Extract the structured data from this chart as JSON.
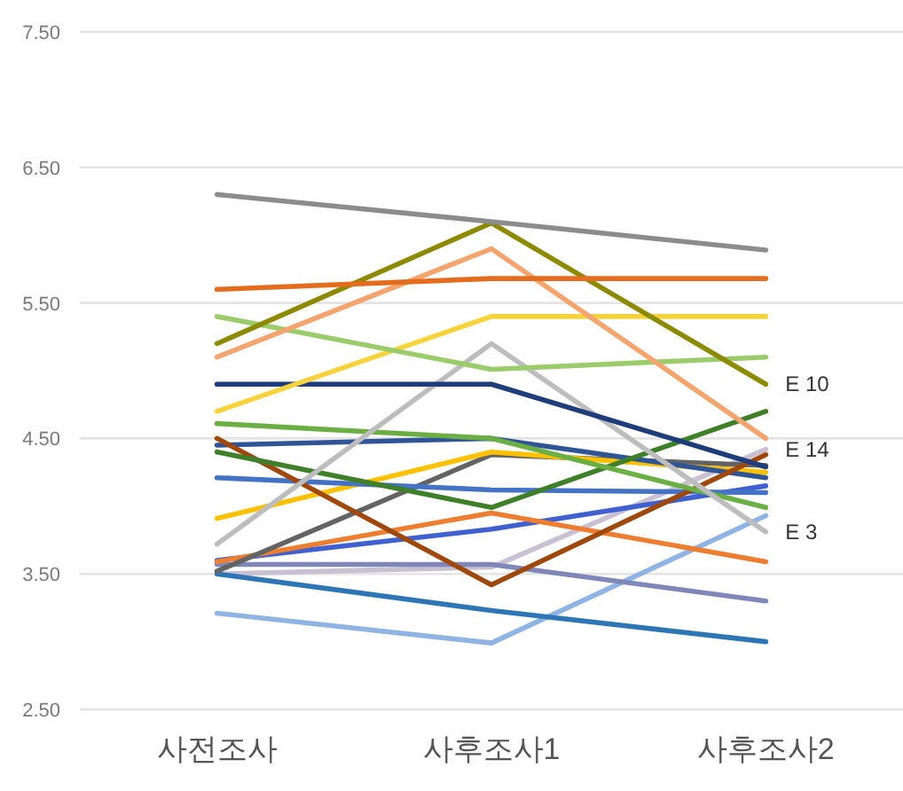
{
  "chart_data": {
    "type": "line",
    "categories": [
      "사전조사",
      "사후조사1",
      "사후조사2"
    ],
    "ylim": [
      2.5,
      7.5
    ],
    "yticks": [
      {
        "value": 2.5,
        "label": "2.50"
      },
      {
        "value": 3.5,
        "label": "3.50"
      },
      {
        "value": 4.5,
        "label": "4.50"
      },
      {
        "value": 5.5,
        "label": "5.50"
      },
      {
        "value": 6.5,
        "label": "6.50"
      },
      {
        "value": 7.5,
        "label": "7.50"
      }
    ],
    "grid": "y",
    "line_style": "solid",
    "series": [
      {
        "color": "#c9c0d3",
        "values": [
          3.5,
          3.55,
          4.42
        ],
        "name": "E 14"
      },
      {
        "color": "#8fb4e3",
        "values": [
          3.21,
          2.99,
          3.93
        ]
      },
      {
        "color": "#2e75b6",
        "values": [
          3.5,
          3.23,
          3.0
        ]
      },
      {
        "color": "#7f86b8",
        "values": [
          3.57,
          3.57,
          3.3
        ]
      },
      {
        "color": "#4060d0",
        "values": [
          3.6,
          3.83,
          4.15
        ]
      },
      {
        "color": "#ed7d31",
        "values": [
          3.59,
          3.95,
          3.59
        ]
      },
      {
        "color": "#636363",
        "values": [
          3.52,
          4.38,
          4.3
        ]
      },
      {
        "color": "#ffc000",
        "values": [
          3.91,
          4.4,
          4.25
        ]
      },
      {
        "color": "#4472c4",
        "values": [
          4.21,
          4.12,
          4.1
        ]
      },
      {
        "color": "#2f5597",
        "values": [
          4.45,
          4.5,
          4.21
        ]
      },
      {
        "color": "#9e480e",
        "values": [
          4.5,
          3.42,
          4.38
        ]
      },
      {
        "color": "#3f7f2a",
        "values": [
          4.4,
          3.99,
          4.7
        ]
      },
      {
        "color": "#6aae44",
        "values": [
          4.61,
          4.5,
          3.99
        ]
      },
      {
        "color": "#bdbdbd",
        "values": [
          3.72,
          5.2,
          3.81
        ],
        "name": "E 3"
      },
      {
        "color": "#1f3d7a",
        "values": [
          4.9,
          4.9,
          4.29
        ]
      },
      {
        "color": "#f6d33c",
        "values": [
          4.7,
          5.4,
          5.4
        ]
      },
      {
        "color": "#9bcb6a",
        "values": [
          5.4,
          5.01,
          5.1
        ]
      },
      {
        "color": "#f4a46e",
        "values": [
          5.1,
          5.9,
          4.5
        ]
      },
      {
        "color": "#8c8a00",
        "values": [
          5.2,
          6.09,
          4.9
        ],
        "name": "E 10"
      },
      {
        "color": "#e36c1e",
        "values": [
          5.6,
          5.68,
          5.68
        ]
      },
      {
        "color": "#8c8c8c",
        "values": [
          6.3,
          6.1,
          5.89
        ]
      }
    ]
  }
}
